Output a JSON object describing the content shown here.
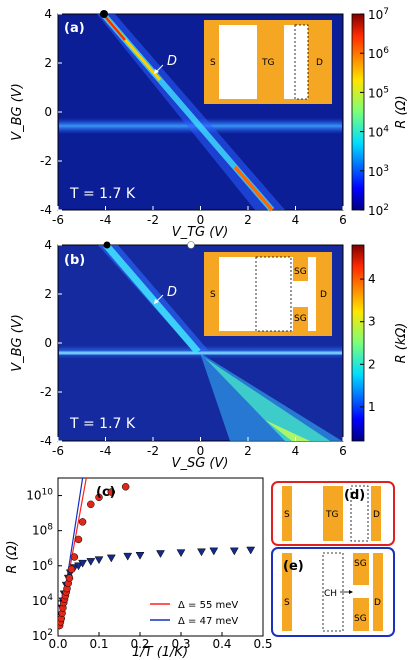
{
  "colors": {
    "orange": "#f5a623",
    "bg_dark": "#0b1f8a",
    "red_frame": "#e02020",
    "blue_frame": "#1d2fbf",
    "fit_red": "#ff2020",
    "fit_blue": "#1030c0",
    "marker_red": "#e02818",
    "marker_blue": "#152a8c"
  },
  "chart_data": [
    {
      "type": "heatmap",
      "panel": "(a)",
      "xlabel": "V_TG (V)",
      "ylabel": "V_BG (V)",
      "xlim": [
        -6,
        6
      ],
      "ylim": [
        -4,
        4
      ],
      "x_ticks": [
        "-6",
        "-4",
        "-2",
        "0",
        "2",
        "4",
        "6"
      ],
      "y_ticks": [
        "4",
        "2",
        "0",
        "-2",
        "-4"
      ],
      "colorbar_label": "R (Ω)",
      "colorbar_scale": "log",
      "colorbar_ticks": [
        "10^7",
        "10^6",
        "10^5",
        "10^4",
        "10^3",
        "10^2"
      ],
      "annotation_temp": "T = 1.7 K",
      "annotation_D": "D",
      "inset_labels": [
        "S",
        "TG",
        "D"
      ],
      "features": {
        "diagonal_line": [
          [
            -4.2,
            4
          ],
          [
            2.8,
            -4
          ]
        ],
        "horizontal_band_VBG": -0.7,
        "marker": [
          -4.1,
          4.0
        ]
      }
    },
    {
      "type": "heatmap",
      "panel": "(b)",
      "xlabel": "V_SG (V)",
      "ylabel": "V_BG (V)",
      "xlim": [
        -6,
        6
      ],
      "ylim": [
        -4,
        4
      ],
      "x_ticks": [
        "-6",
        "-4",
        "-2",
        "0",
        "2",
        "4",
        "6"
      ],
      "y_ticks": [
        "4",
        "2",
        "0",
        "-2",
        "-4"
      ],
      "colorbar_label": "R (kΩ)",
      "colorbar_scale": "linear",
      "colorbar_ticks": [
        "4",
        "3",
        "2",
        "1"
      ],
      "annotation_temp": "T = 1.7 K",
      "annotation_D": "D",
      "inset_labels": [
        "S",
        "SG",
        "SG",
        "D"
      ],
      "features": {
        "diagonal_line": [
          [
            -4.2,
            4
          ],
          [
            0,
            -0.5
          ]
        ],
        "horizontal_line_VBG": -0.5,
        "marker_black": [
          -4.1,
          4.0
        ],
        "marker_white": [
          -0.4,
          4.0
        ]
      }
    },
    {
      "type": "scatter",
      "panel": "(c)",
      "xlabel": "1/T (1/K)",
      "ylabel": "R (Ω)",
      "xlim": [
        0,
        0.5
      ],
      "ylim_log10": [
        2,
        11
      ],
      "x_ticks": [
        "0.0",
        "0.1",
        "0.2",
        "0.3",
        "0.4",
        "0.5"
      ],
      "y_ticks": [
        "10^2",
        "10^4",
        "10^6",
        "10^8",
        "10^10"
      ],
      "series": [
        {
          "marker": "circle",
          "points": [
            [
              0.004,
              2.6
            ],
            [
              0.006,
              2.8
            ],
            [
              0.008,
              3.0
            ],
            [
              0.01,
              3.3
            ],
            [
              0.012,
              3.6
            ],
            [
              0.014,
              3.9
            ],
            [
              0.016,
              4.1
            ],
            [
              0.018,
              4.3
            ],
            [
              0.02,
              4.5
            ],
            [
              0.022,
              4.7
            ],
            [
              0.025,
              5.0
            ],
            [
              0.028,
              5.3
            ],
            [
              0.033,
              5.8
            ],
            [
              0.04,
              6.5
            ],
            [
              0.05,
              7.5
            ],
            [
              0.06,
              8.5
            ],
            [
              0.08,
              9.5
            ],
            [
              0.1,
              9.9
            ],
            [
              0.13,
              10.2
            ],
            [
              0.165,
              10.5
            ]
          ]
        },
        {
          "marker": "triangle",
          "points": [
            [
              0.004,
              2.6
            ],
            [
              0.006,
              2.9
            ],
            [
              0.008,
              3.2
            ],
            [
              0.01,
              3.6
            ],
            [
              0.012,
              4.0
            ],
            [
              0.015,
              4.4
            ],
            [
              0.02,
              4.9
            ],
            [
              0.025,
              5.3
            ],
            [
              0.03,
              5.6
            ],
            [
              0.04,
              5.9
            ],
            [
              0.05,
              6.0
            ],
            [
              0.06,
              6.15
            ],
            [
              0.08,
              6.25
            ],
            [
              0.1,
              6.35
            ],
            [
              0.13,
              6.45
            ],
            [
              0.17,
              6.55
            ],
            [
              0.2,
              6.6
            ],
            [
              0.25,
              6.7
            ],
            [
              0.3,
              6.75
            ],
            [
              0.35,
              6.8
            ],
            [
              0.38,
              6.85
            ],
            [
              0.43,
              6.85
            ],
            [
              0.47,
              6.9
            ]
          ]
        }
      ],
      "fits": [
        {
          "label": "Δ = 55 meV",
          "color": "#ff2020",
          "points": [
            [
              0.005,
              2.8
            ],
            [
              0.069,
              11.0
            ]
          ]
        },
        {
          "label": "Δ = 47 meV",
          "color": "#1030c0",
          "points": [
            [
              0.005,
              2.7
            ],
            [
              0.06,
              11.0
            ]
          ]
        }
      ]
    }
  ],
  "panels_de": {
    "d": {
      "label": "(d)",
      "texts": [
        "S",
        "TG",
        "D"
      ]
    },
    "e": {
      "label": "(e)",
      "texts": [
        "S",
        "CH",
        "SG",
        "SG",
        "D"
      ]
    }
  }
}
